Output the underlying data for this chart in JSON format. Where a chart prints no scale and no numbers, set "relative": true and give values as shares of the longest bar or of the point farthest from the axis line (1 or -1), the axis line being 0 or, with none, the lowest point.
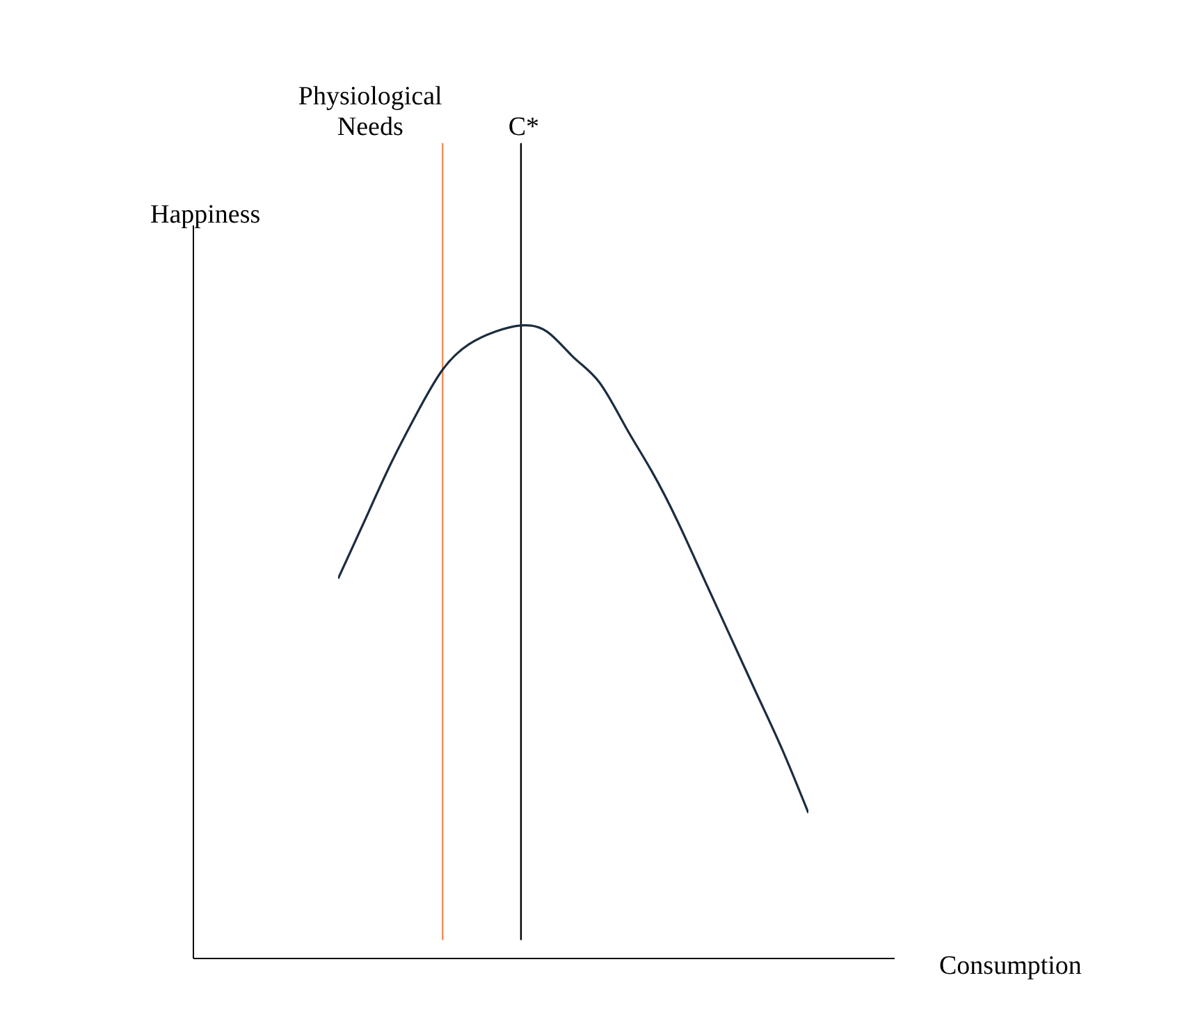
{
  "chart_data": {
    "type": "line",
    "relative": true,
    "xlabel": "Consumption",
    "ylabel": "Happiness",
    "categories": [
      null,
      null,
      null,
      null,
      null,
      null,
      null,
      null,
      null,
      null,
      null,
      null,
      null,
      null,
      null,
      null,
      null,
      null,
      null
    ],
    "series": [
      {
        "color": "#1b2d3f",
        "values": [
          0.6,
          0.69,
          0.78,
          0.86,
          0.93,
          0.97,
          0.99,
          1.0,
          0.99,
          0.95,
          0.91,
          0.84,
          0.77,
          0.69,
          0.6,
          0.51,
          0.42,
          0.33,
          0.23
        ]
      }
    ],
    "annotations": [
      "Physiological Needs",
      "C*"
    ],
    "grid": false,
    "legend": false,
    "marker": "none",
    "line_style": "solid"
  }
}
